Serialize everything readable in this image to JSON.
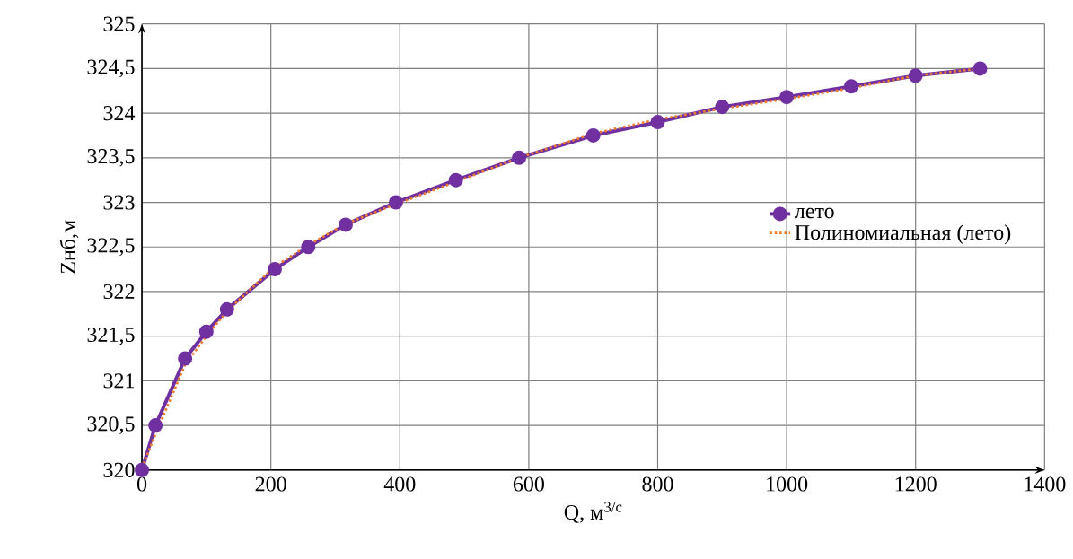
{
  "chart_data": {
    "type": "line",
    "xlabel": "Q, м$^{3/с}$",
    "ylabel": "Zнб,м",
    "xlim": [
      0,
      1400
    ],
    "ylim": [
      320,
      325
    ],
    "xticks": [
      0,
      200,
      400,
      600,
      800,
      1000,
      1200,
      1400
    ],
    "yticks": [
      320,
      {
        "value": 320.5,
        "label": "320,5"
      },
      321,
      {
        "value": 321.5,
        "label": "321,5"
      },
      322,
      {
        "value": 322.5,
        "label": "322,5"
      },
      323,
      {
        "value": 323.5,
        "label": "323,5"
      },
      324,
      {
        "value": 324.5,
        "label": "324,5"
      },
      325
    ],
    "grid": true,
    "legend": "right",
    "series": [
      {
        "name": "лето",
        "color": "#7030a0",
        "marker": "circle",
        "line_style": "solid",
        "x": [
          0,
          21,
          67,
          100,
          132,
          206,
          258,
          316,
          394,
          487,
          585,
          700,
          800,
          900,
          1000,
          1100,
          1200,
          1300
        ],
        "values": [
          320,
          320.5,
          321.25,
          321.55,
          321.8,
          322.25,
          322.5,
          322.75,
          323,
          323.25,
          323.5,
          323.75,
          323.9,
          324.07,
          324.18,
          324.3,
          324.42,
          324.5
        ]
      },
      {
        "name": "Полиномиальная (лето)",
        "color": "#ed7d31",
        "marker": "none",
        "line_style": "dotted",
        "x": [
          0,
          21,
          67,
          100,
          132,
          206,
          258,
          316,
          394,
          487,
          585,
          700,
          800,
          900,
          1000,
          1100,
          1200,
          1300
        ],
        "values": [
          320.02,
          320.4,
          321.18,
          321.5,
          321.78,
          322.28,
          322.52,
          322.76,
          322.98,
          323.23,
          323.5,
          323.77,
          323.93,
          324.05,
          324.16,
          324.28,
          324.42,
          324.5
        ]
      }
    ]
  }
}
